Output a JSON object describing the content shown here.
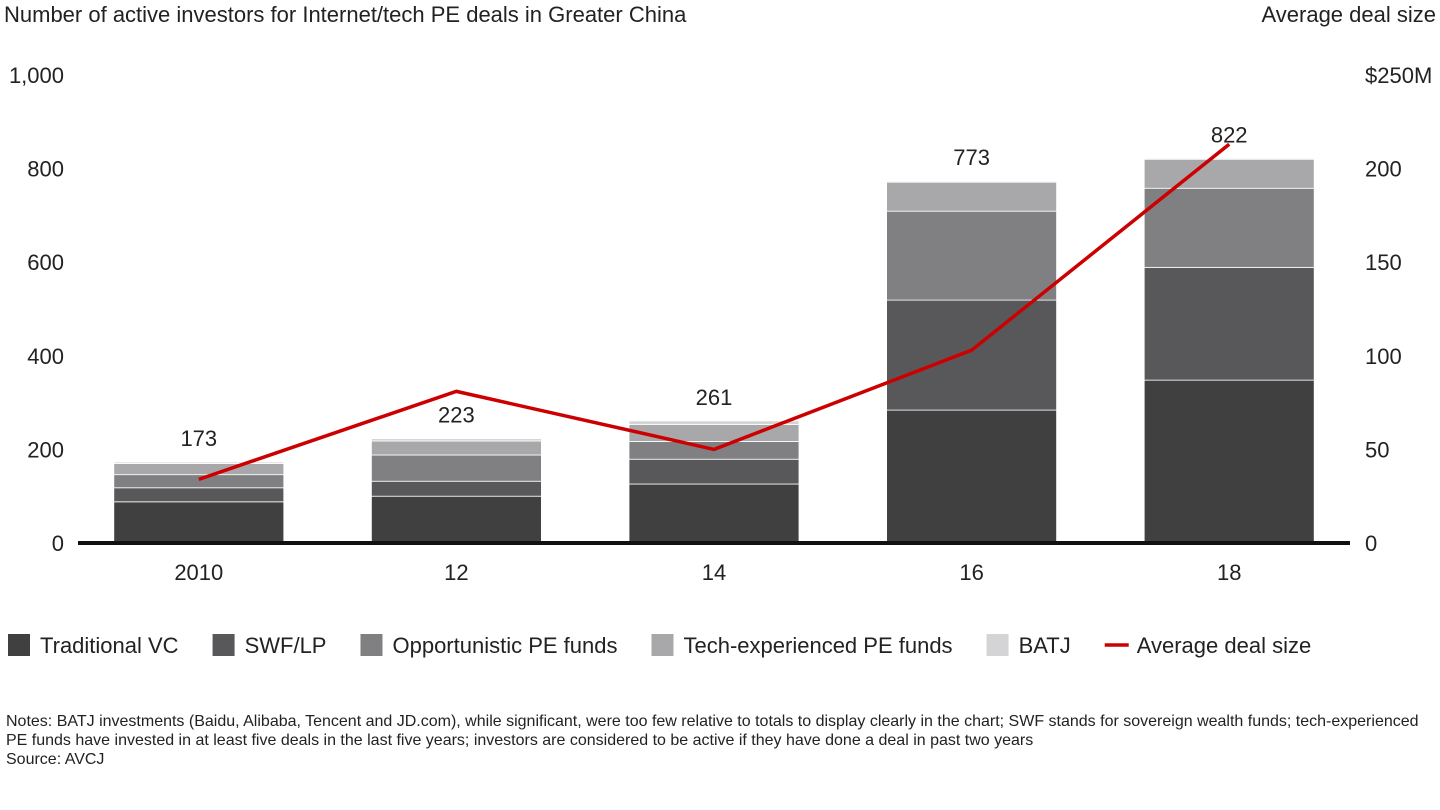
{
  "chart_data": {
    "type": "bar",
    "stacked": true,
    "title": "Number of active investors for Internet/tech PE deals in Greater China",
    "y2_title": "Average deal size",
    "categories": [
      "2010",
      "12",
      "14",
      "16",
      "18"
    ],
    "series": [
      {
        "name": "Traditional VC",
        "color": "#404040",
        "values": [
          88,
          100,
          126,
          284,
          348
        ]
      },
      {
        "name": "SWF/LP",
        "color": "#58585a",
        "values": [
          30,
          32,
          53,
          235,
          241
        ]
      },
      {
        "name": "Opportunistic PE funds",
        "color": "#808083",
        "values": [
          28,
          56,
          38,
          190,
          169
        ]
      },
      {
        "name": "Tech-experienced PE funds",
        "color": "#a8a8ab",
        "values": [
          24,
          30,
          36,
          62,
          62
        ]
      },
      {
        "name": "BATJ",
        "color": "#d4d4d6",
        "values": [
          3,
          5,
          8,
          2,
          2
        ]
      },
      {
        "name": "Average deal size",
        "color": "#cc0000",
        "type": "line",
        "axis": "y2",
        "values": [
          34,
          81,
          50,
          103,
          213
        ]
      }
    ],
    "totals": [
      173,
      223,
      261,
      773,
      822
    ],
    "ylim": [
      0,
      1000
    ],
    "yticks": [
      0,
      200,
      400,
      600,
      800,
      {
        "value": 1000,
        "label": "1,000"
      }
    ],
    "y2lim": [
      0,
      250
    ],
    "y2ticks": [
      0,
      50,
      100,
      150,
      200,
      {
        "value": 250,
        "label": "$250M"
      }
    ],
    "notes": "Notes: BATJ investments (Baidu, Alibaba, Tencent and JD.com), while significant, were too few relative to totals to display clearly in the chart; SWF stands for sovereign wealth funds; tech-experienced PE funds have invested in at least five deals in the last five years; investors are considered to be active if they have done a deal in past two years",
    "source": "Source: AVCJ"
  }
}
